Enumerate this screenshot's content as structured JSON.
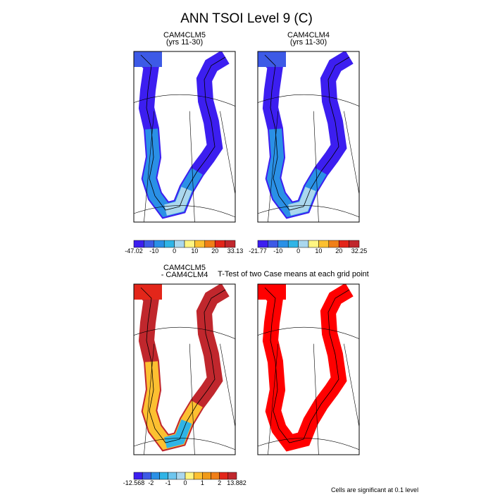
{
  "title": "ANN TSOI Level 9 (C)",
  "panels": [
    {
      "title": [
        "CAM4CLM5",
        "(yrs 11-30)"
      ]
    },
    {
      "title": [
        "CAM4CLM4",
        "(yrs 11-30)"
      ]
    },
    {
      "title": [
        "CAM4CLM5",
        "- CAM4CLM4"
      ]
    },
    {
      "title": [
        "T-Test of two Case means at each grid point"
      ]
    }
  ],
  "colorbars": [
    {
      "labels": [
        "-47.02",
        "-10",
        "0",
        "10",
        "20",
        "33.13"
      ]
    },
    {
      "labels": [
        "-21.77",
        "-10",
        "0",
        "10",
        "20",
        "32.25"
      ]
    },
    {
      "labels": [
        "-12.568",
        "-2",
        "-1",
        "0",
        "1",
        "2",
        "13.882"
      ]
    }
  ],
  "note": "Cells are significant at 0.1 level"
}
